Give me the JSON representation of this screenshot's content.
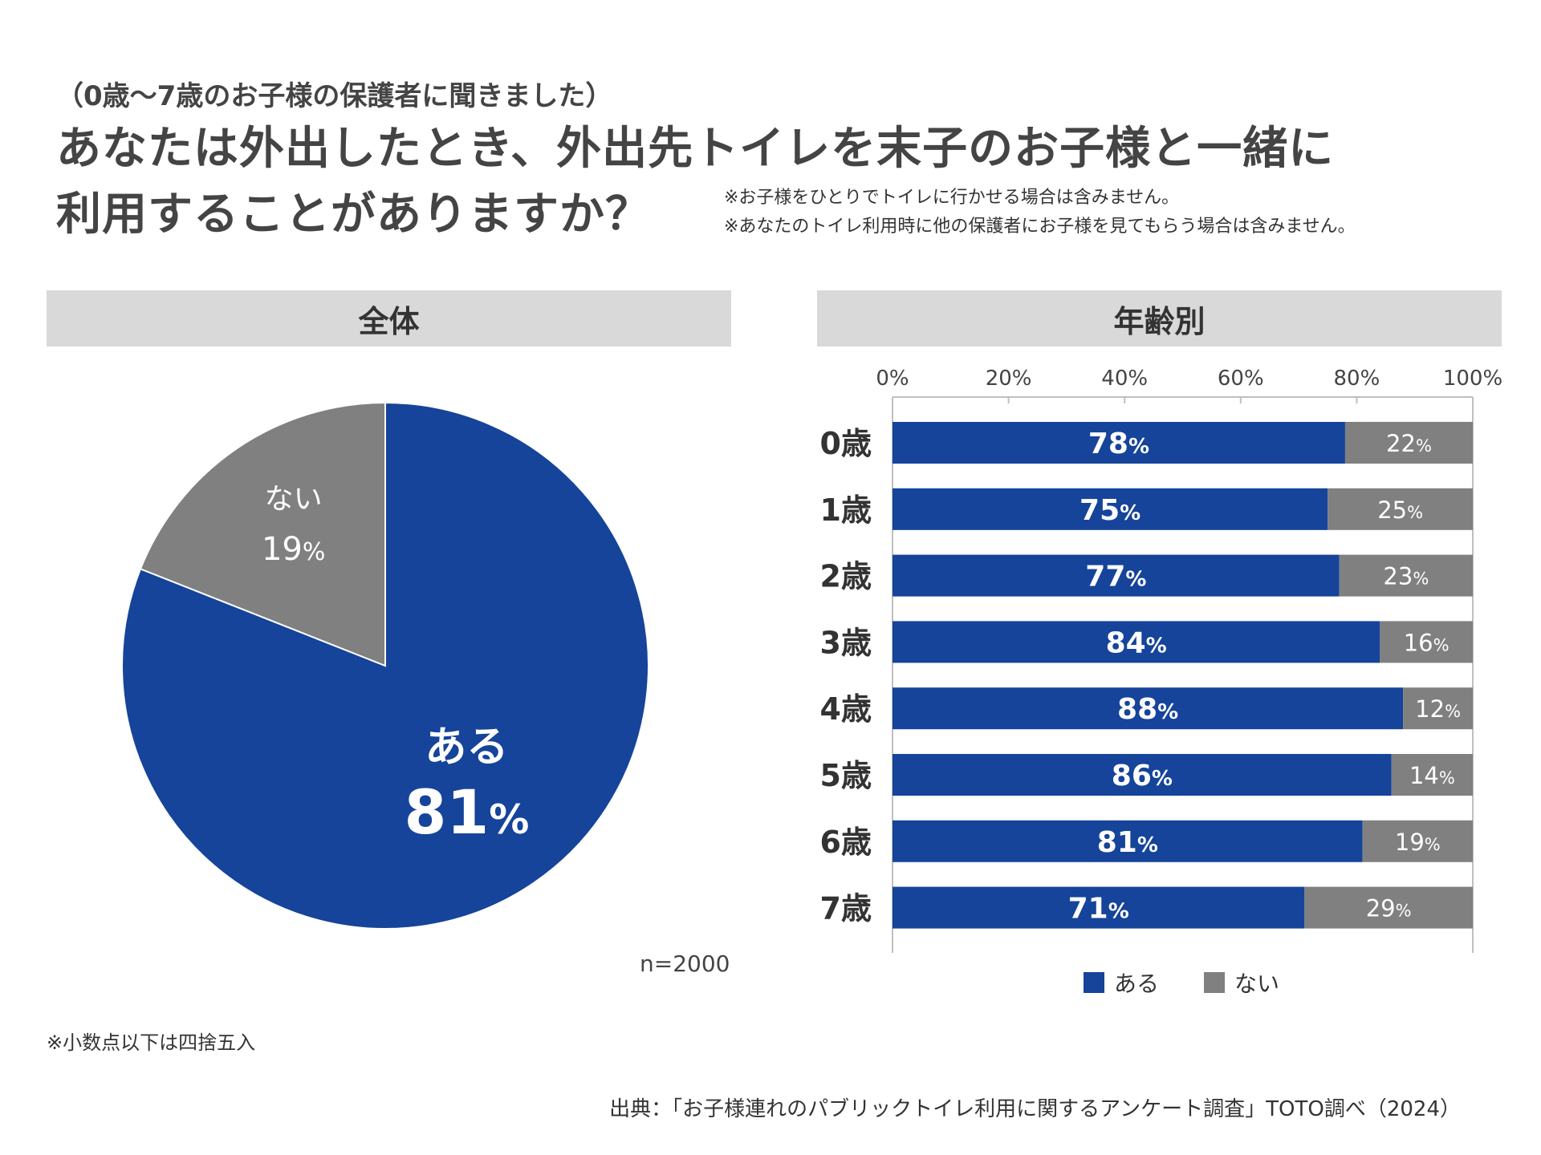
{
  "header": {
    "subquestion": "（0歳〜7歳のお子様の保護者に聞きました）",
    "title_line1": "あなたは外出したとき、外出先トイレを末子のお子様と一緒に",
    "title_line2": "利用することがありますか？",
    "note1": "※お子様をひとりでトイレに行かせる場合は含みません。",
    "note2": "※あなたのトイレ利用時に他の保護者にお子様を見てもらう場合は含みません。"
  },
  "panels": {
    "left_title": "全体",
    "right_title": "年齢別"
  },
  "colors": {
    "aru": "#15449a",
    "nai": "#808080",
    "header_bg": "#d9d9d9"
  },
  "chart_data": [
    {
      "type": "pie",
      "title": "全体",
      "slices": [
        {
          "label": "ある",
          "value": 81,
          "display": "81"
        },
        {
          "label": "ない",
          "value": 19,
          "display": "19"
        }
      ],
      "unit": "%",
      "n": "n=2000"
    },
    {
      "type": "bar",
      "orientation": "horizontal",
      "stacked": true,
      "title": "年齢別",
      "categories": [
        "0歳",
        "1歳",
        "2歳",
        "3歳",
        "4歳",
        "5歳",
        "6歳",
        "7歳"
      ],
      "series": [
        {
          "name": "ある",
          "values": [
            78,
            75,
            77,
            84,
            88,
            86,
            81,
            71
          ]
        },
        {
          "name": "ない",
          "values": [
            22,
            25,
            23,
            16,
            12,
            14,
            19,
            29
          ]
        }
      ],
      "xticks": [
        "0%",
        "20%",
        "40%",
        "60%",
        "80%",
        "100%"
      ],
      "xlim": [
        0,
        100
      ],
      "unit": "%",
      "legend": "bottom"
    }
  ],
  "footer": {
    "footnote": "※小数点以下は四捨五入",
    "source": "出典：「お子様連れのパブリックトイレ利用に関するアンケート調査」TOTO調べ（2024）"
  }
}
